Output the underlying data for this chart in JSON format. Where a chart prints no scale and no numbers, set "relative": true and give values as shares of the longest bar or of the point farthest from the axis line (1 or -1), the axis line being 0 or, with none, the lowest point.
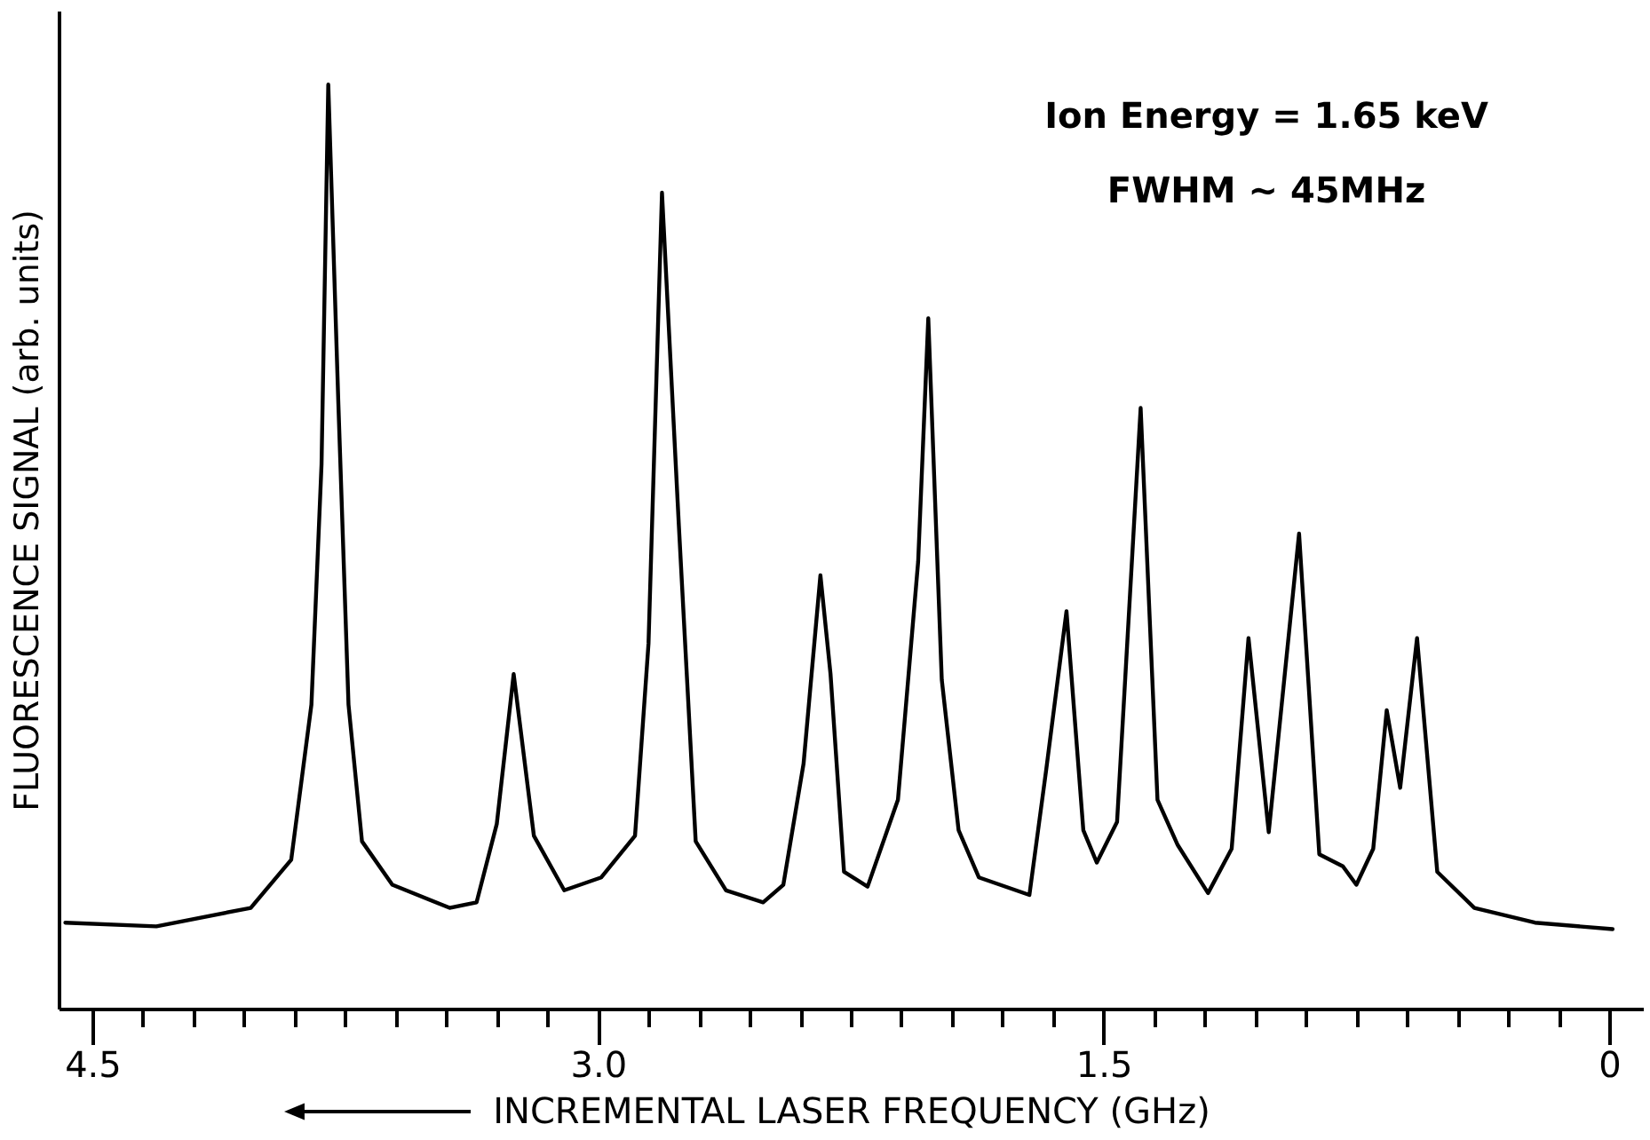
{
  "chart_data": {
    "type": "line",
    "relative": true,
    "xlabel": "INCREMENTAL LASER FREQUENCY (GHz)",
    "ylabel": "FLUORESCENCE SIGNAL (arb. units)",
    "annotations": [
      "Ion Energy = 1.65 keV",
      "FWHM ~ 45MHz"
    ],
    "xlim": [
      4.6,
      -0.1
    ],
    "xticks": [
      4.5,
      {
        "value": 4.35,
        "label": null
      },
      {
        "value": 4.2,
        "label": null
      },
      {
        "value": 4.05,
        "label": null
      },
      {
        "value": 3.9,
        "label": null
      },
      {
        "value": 3.75,
        "label": null
      },
      {
        "value": 3.6,
        "label": null
      },
      {
        "value": 3.45,
        "label": null
      },
      {
        "value": 3.3,
        "label": null
      },
      {
        "value": 3.15,
        "label": null
      },
      {
        "value": 3,
        "label": "3.0"
      },
      {
        "value": 2.85,
        "label": null
      },
      {
        "value": 2.7,
        "label": null
      },
      {
        "value": 2.55,
        "label": null
      },
      {
        "value": 2.4,
        "label": null
      },
      {
        "value": 2.25,
        "label": null
      },
      {
        "value": 2.1,
        "label": null
      },
      {
        "value": 1.95,
        "label": null
      },
      {
        "value": 1.8,
        "label": null
      },
      {
        "value": 1.65,
        "label": null
      },
      1.5,
      {
        "value": 1.35,
        "label": null
      },
      {
        "value": 1.2,
        "label": null
      },
      {
        "value": 1.05,
        "label": null
      },
      {
        "value": 0.9,
        "label": null
      },
      {
        "value": 0.75,
        "label": null
      },
      {
        "value": 0.6,
        "label": null
      },
      {
        "value": 0.45,
        "label": null
      },
      {
        "value": 0.3,
        "label": null
      },
      {
        "value": 0.15,
        "label": null
      },
      0
    ],
    "x": [
      4.58,
      4.31,
      4.03,
      3.91,
      3.85,
      3.82,
      3.8,
      3.77,
      3.74,
      3.7,
      3.61,
      3.44,
      3.36,
      3.3,
      3.25,
      3.19,
      3.1,
      2.99,
      2.89,
      2.85,
      2.81,
      2.76,
      2.71,
      2.62,
      2.51,
      2.45,
      2.39,
      2.34,
      2.31,
      2.27,
      2.2,
      2.11,
      2.05,
      2.02,
      1.98,
      1.93,
      1.87,
      1.72,
      1.67,
      1.61,
      1.56,
      1.52,
      1.46,
      1.39,
      1.34,
      1.28,
      1.19,
      1.12,
      1.07,
      1.01,
      0.92,
      0.86,
      0.79,
      0.75,
      0.7,
      0.66,
      0.62,
      0.57,
      0.51,
      0.4,
      0.22,
      -0.01
    ],
    "series": [
      {
        "color": "#000000",
        "values": [
          0.093,
          0.089,
          0.109,
          0.161,
          0.329,
          0.589,
          1,
          0.654,
          0.329,
          0.181,
          0.134,
          0.109,
          0.115,
          0.2,
          0.362,
          0.187,
          0.128,
          0.142,
          0.187,
          0.395,
          0.883,
          0.523,
          0.181,
          0.128,
          0.115,
          0.134,
          0.265,
          0.469,
          0.362,
          0.148,
          0.132,
          0.226,
          0.484,
          0.747,
          0.356,
          0.193,
          0.142,
          0.123,
          0.259,
          0.43,
          0.193,
          0.158,
          0.202,
          0.65,
          0.226,
          0.177,
          0.125,
          0.173,
          0.401,
          0.191,
          0.514,
          0.167,
          0.154,
          0.134,
          0.173,
          0.323,
          0.239,
          0.401,
          0.148,
          0.109,
          0.093,
          0.086
        ]
      }
    ]
  }
}
